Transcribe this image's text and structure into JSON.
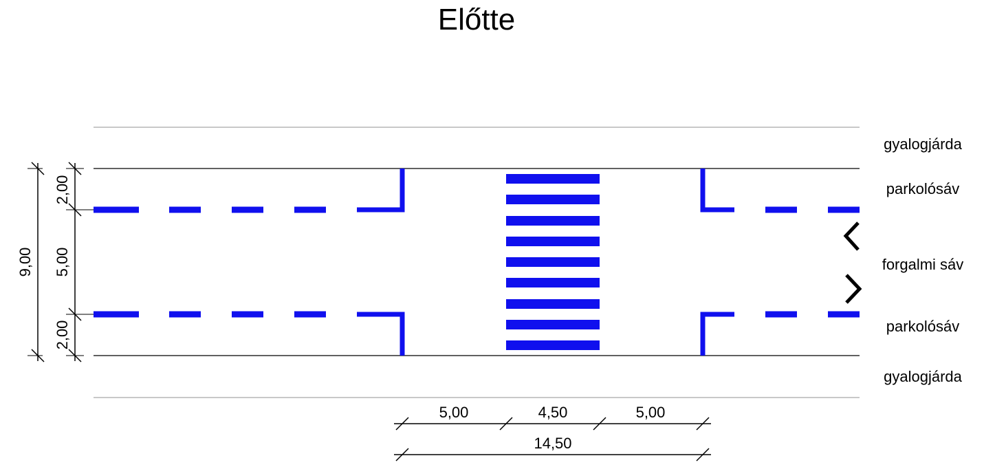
{
  "title": "Előtte",
  "lane_labels": {
    "sidewalk_top": "gyalogjárda",
    "parking_top": "parkolósáv",
    "traffic": "forgalmi sáv",
    "parking_bottom": "parkolósáv",
    "sidewalk_bottom": "gyalogjárda"
  },
  "dimensions": {
    "vertical_total": "9,00",
    "vertical_parking_top": "2,00",
    "vertical_traffic": "5,00",
    "vertical_parking_bottom": "2,00",
    "horizontal_left": "5,00",
    "horizontal_crossing": "4,50",
    "horizontal_right": "5,00",
    "horizontal_total": "14,50"
  },
  "colors": {
    "marking": "#1010ee",
    "line": "#000000",
    "sidewalk_edge": "#c8c8c8"
  }
}
